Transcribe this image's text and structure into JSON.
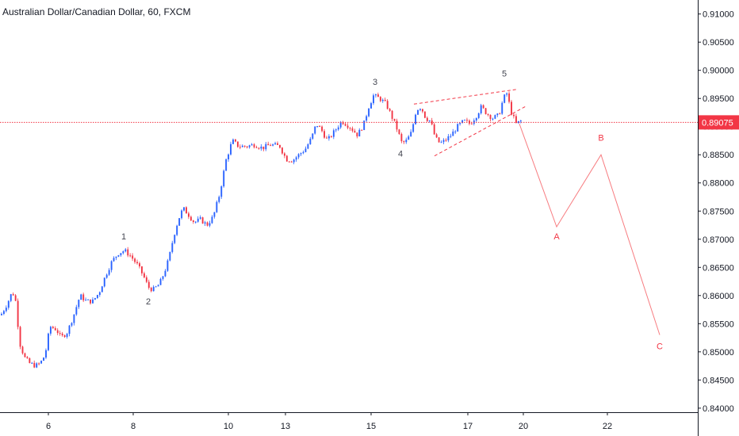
{
  "header": {
    "title": "Australian Dollar/Canadian Dollar, 60, FXCM"
  },
  "colors": {
    "up": "#2962ff",
    "down": "#f23645",
    "projection": "#f77c80",
    "axis": "#131722",
    "grid_line": "#e0e3eb"
  },
  "chart_data": {
    "type": "candlestick",
    "symbol": "AUDCAD",
    "interval": "60",
    "source": "FXCM",
    "y_ticks": [
      "0.91000",
      "0.90500",
      "0.90000",
      "0.89500",
      "0.89000",
      "0.88500",
      "0.88000",
      "0.87500",
      "0.87000",
      "0.86500",
      "0.86000",
      "0.85500",
      "0.85000",
      "0.84500",
      "0.84000"
    ],
    "x_ticks": [
      "6",
      "8",
      "10",
      "13",
      "15",
      "17",
      "20",
      "22"
    ],
    "ylim": [
      0.8397,
      0.9115
    ],
    "current_price": {
      "value": 0.89075,
      "label": "0.89075"
    },
    "price_path": [
      {
        "t": 0,
        "p": 0.8565
      },
      {
        "t": 8,
        "p": 0.8585
      },
      {
        "t": 14,
        "p": 0.8605
      },
      {
        "t": 18,
        "p": 0.86
      },
      {
        "t": 24,
        "p": 0.8515
      },
      {
        "t": 30,
        "p": 0.849
      },
      {
        "t": 36,
        "p": 0.848
      },
      {
        "t": 44,
        "p": 0.8475
      },
      {
        "t": 50,
        "p": 0.848
      },
      {
        "t": 56,
        "p": 0.8495
      },
      {
        "t": 62,
        "p": 0.8545
      },
      {
        "t": 70,
        "p": 0.854
      },
      {
        "t": 76,
        "p": 0.8525
      },
      {
        "t": 84,
        "p": 0.8535
      },
      {
        "t": 92,
        "p": 0.8565
      },
      {
        "t": 100,
        "p": 0.86
      },
      {
        "t": 108,
        "p": 0.859
      },
      {
        "t": 116,
        "p": 0.859
      },
      {
        "t": 124,
        "p": 0.8605
      },
      {
        "t": 132,
        "p": 0.8635
      },
      {
        "t": 140,
        "p": 0.866
      },
      {
        "t": 148,
        "p": 0.8675
      },
      {
        "t": 156,
        "p": 0.868
      },
      {
        "t": 164,
        "p": 0.867
      },
      {
        "t": 172,
        "p": 0.8655
      },
      {
        "t": 180,
        "p": 0.8635
      },
      {
        "t": 186,
        "p": 0.8615
      },
      {
        "t": 192,
        "p": 0.861
      },
      {
        "t": 200,
        "p": 0.862
      },
      {
        "t": 206,
        "p": 0.864
      },
      {
        "t": 212,
        "p": 0.8665
      },
      {
        "t": 218,
        "p": 0.8705
      },
      {
        "t": 224,
        "p": 0.8735
      },
      {
        "t": 230,
        "p": 0.8755
      },
      {
        "t": 236,
        "p": 0.8745
      },
      {
        "t": 244,
        "p": 0.873
      },
      {
        "t": 252,
        "p": 0.8735
      },
      {
        "t": 260,
        "p": 0.8725
      },
      {
        "t": 268,
        "p": 0.874
      },
      {
        "t": 276,
        "p": 0.878
      },
      {
        "t": 284,
        "p": 0.884
      },
      {
        "t": 292,
        "p": 0.8875
      },
      {
        "t": 300,
        "p": 0.8865
      },
      {
        "t": 310,
        "p": 0.8865
      },
      {
        "t": 320,
        "p": 0.8868
      },
      {
        "t": 330,
        "p": 0.8862
      },
      {
        "t": 340,
        "p": 0.8868
      },
      {
        "t": 352,
        "p": 0.8865
      },
      {
        "t": 360,
        "p": 0.8842
      },
      {
        "t": 368,
        "p": 0.884
      },
      {
        "t": 376,
        "p": 0.885
      },
      {
        "t": 384,
        "p": 0.886
      },
      {
        "t": 392,
        "p": 0.888
      },
      {
        "t": 398,
        "p": 0.8905
      },
      {
        "t": 404,
        "p": 0.8895
      },
      {
        "t": 412,
        "p": 0.8875
      },
      {
        "t": 420,
        "p": 0.889
      },
      {
        "t": 430,
        "p": 0.891
      },
      {
        "t": 440,
        "p": 0.89
      },
      {
        "t": 450,
        "p": 0.8885
      },
      {
        "t": 458,
        "p": 0.8905
      },
      {
        "t": 464,
        "p": 0.8935
      },
      {
        "t": 470,
        "p": 0.8955
      },
      {
        "t": 478,
        "p": 0.895
      },
      {
        "t": 486,
        "p": 0.894
      },
      {
        "t": 494,
        "p": 0.8915
      },
      {
        "t": 500,
        "p": 0.8895
      },
      {
        "t": 506,
        "p": 0.887
      },
      {
        "t": 512,
        "p": 0.8875
      },
      {
        "t": 518,
        "p": 0.889
      },
      {
        "t": 524,
        "p": 0.893
      },
      {
        "t": 530,
        "p": 0.8935
      },
      {
        "t": 536,
        "p": 0.8915
      },
      {
        "t": 542,
        "p": 0.891
      },
      {
        "t": 548,
        "p": 0.888
      },
      {
        "t": 554,
        "p": 0.887
      },
      {
        "t": 560,
        "p": 0.8875
      },
      {
        "t": 568,
        "p": 0.8885
      },
      {
        "t": 576,
        "p": 0.89
      },
      {
        "t": 584,
        "p": 0.891
      },
      {
        "t": 592,
        "p": 0.8905
      },
      {
        "t": 600,
        "p": 0.892
      },
      {
        "t": 606,
        "p": 0.8935
      },
      {
        "t": 612,
        "p": 0.8925
      },
      {
        "t": 620,
        "p": 0.8915
      },
      {
        "t": 628,
        "p": 0.892
      },
      {
        "t": 634,
        "p": 0.895
      },
      {
        "t": 638,
        "p": 0.896
      },
      {
        "t": 644,
        "p": 0.8925
      },
      {
        "t": 650,
        "p": 0.8905
      },
      {
        "t": 656,
        "p": 0.891
      }
    ],
    "wave_labels": [
      {
        "label": "1",
        "t": 156,
        "p": 0.87
      },
      {
        "label": "2",
        "t": 187,
        "p": 0.8584
      },
      {
        "label": "3",
        "t": 473,
        "p": 0.8974
      },
      {
        "label": "4",
        "t": 505,
        "p": 0.8847
      },
      {
        "label": "5",
        "t": 636,
        "p": 0.8989
      }
    ],
    "wedge_lines": [
      {
        "from": {
          "t": 522,
          "p": 0.894
        },
        "to": {
          "t": 651,
          "p": 0.8966
        }
      },
      {
        "from": {
          "t": 548,
          "p": 0.8848
        },
        "to": {
          "t": 663,
          "p": 0.8936
        }
      }
    ],
    "projection": {
      "path": [
        {
          "t": 655,
          "p": 0.8905
        },
        {
          "t": 702,
          "p": 0.8722
        },
        {
          "t": 758,
          "p": 0.885
        },
        {
          "t": 832,
          "p": 0.853
        }
      ],
      "labels": [
        {
          "label": "A",
          "t": 702,
          "p": 0.87
        },
        {
          "label": "B",
          "t": 758,
          "p": 0.8875
        },
        {
          "label": "C",
          "t": 832,
          "p": 0.8505
        }
      ]
    }
  }
}
